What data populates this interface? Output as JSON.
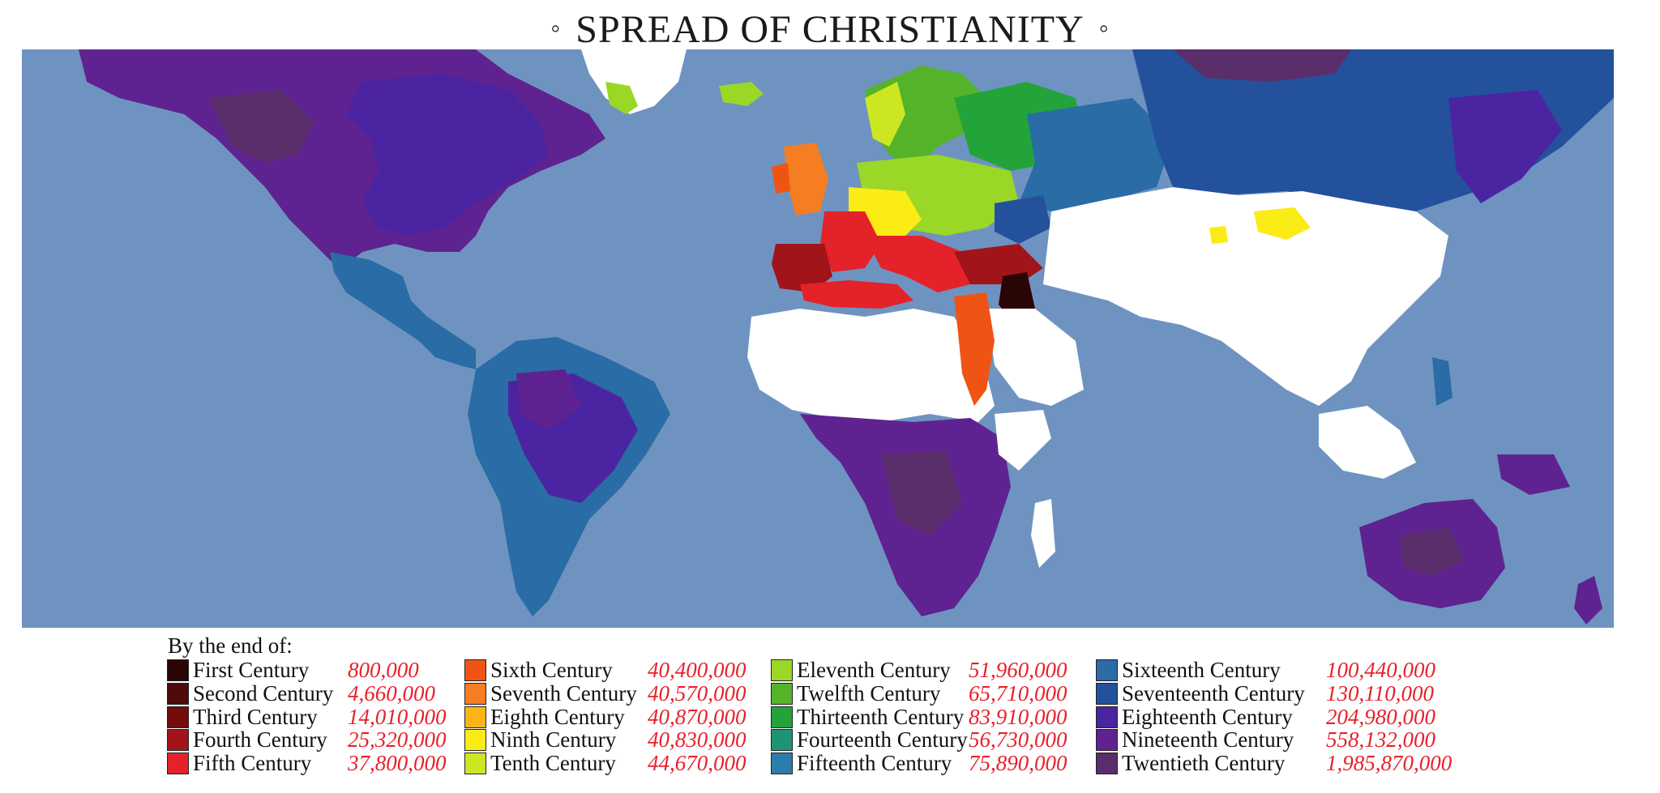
{
  "title": "SPREAD OF CHRISTIANITY",
  "title_marker": "◦",
  "legend": {
    "heading": "By the end of:",
    "items": [
      {
        "label": "First Century",
        "value": "800,000",
        "color": "#2a0505"
      },
      {
        "label": "Second Century",
        "value": "4,660,000",
        "color": "#4e0b0b"
      },
      {
        "label": "Third Century",
        "value": "14,010,000",
        "color": "#740c0c"
      },
      {
        "label": "Fourth Century",
        "value": "25,320,000",
        "color": "#a0141a"
      },
      {
        "label": "Fifth Century",
        "value": "37,800,000",
        "color": "#e3222a"
      },
      {
        "label": "Sixth Century",
        "value": "40,400,000",
        "color": "#f05414"
      },
      {
        "label": "Seventh Century",
        "value": "40,570,000",
        "color": "#f57d22"
      },
      {
        "label": "Eighth Century",
        "value": "40,870,000",
        "color": "#fbb418"
      },
      {
        "label": "Ninth Century",
        "value": "40,830,000",
        "color": "#faec14"
      },
      {
        "label": "Tenth Century",
        "value": "44,670,000",
        "color": "#cde622"
      },
      {
        "label": "Eleventh Century",
        "value": "51,960,000",
        "color": "#9ad727"
      },
      {
        "label": "Twelfth Century",
        "value": "65,710,000",
        "color": "#55b32a"
      },
      {
        "label": "Thirteenth Century",
        "value": "83,910,000",
        "color": "#22a43a"
      },
      {
        "label": "Fourteenth Century",
        "value": "56,730,000",
        "color": "#1f9474"
      },
      {
        "label": "Fifteenth Century",
        "value": "75,890,000",
        "color": "#2a7eab"
      },
      {
        "label": "Sixteenth Century",
        "value": "100,440,000",
        "color": "#2a6ca5"
      },
      {
        "label": "Seventeenth Century",
        "value": "130,110,000",
        "color": "#24519c"
      },
      {
        "label": "Eighteenth Century",
        "value": "204,980,000",
        "color": "#4b24a2"
      },
      {
        "label": "Nineteenth Century",
        "value": "558,132,000",
        "color": "#5e2390"
      },
      {
        "label": "Twentieth Century",
        "value": "1,985,870,000",
        "color": "#5a2d6b"
      }
    ]
  },
  "colors": {
    "ocean": "#6f93c0",
    "non_christian": "#ffffff",
    "value_text": "#e8202a"
  }
}
